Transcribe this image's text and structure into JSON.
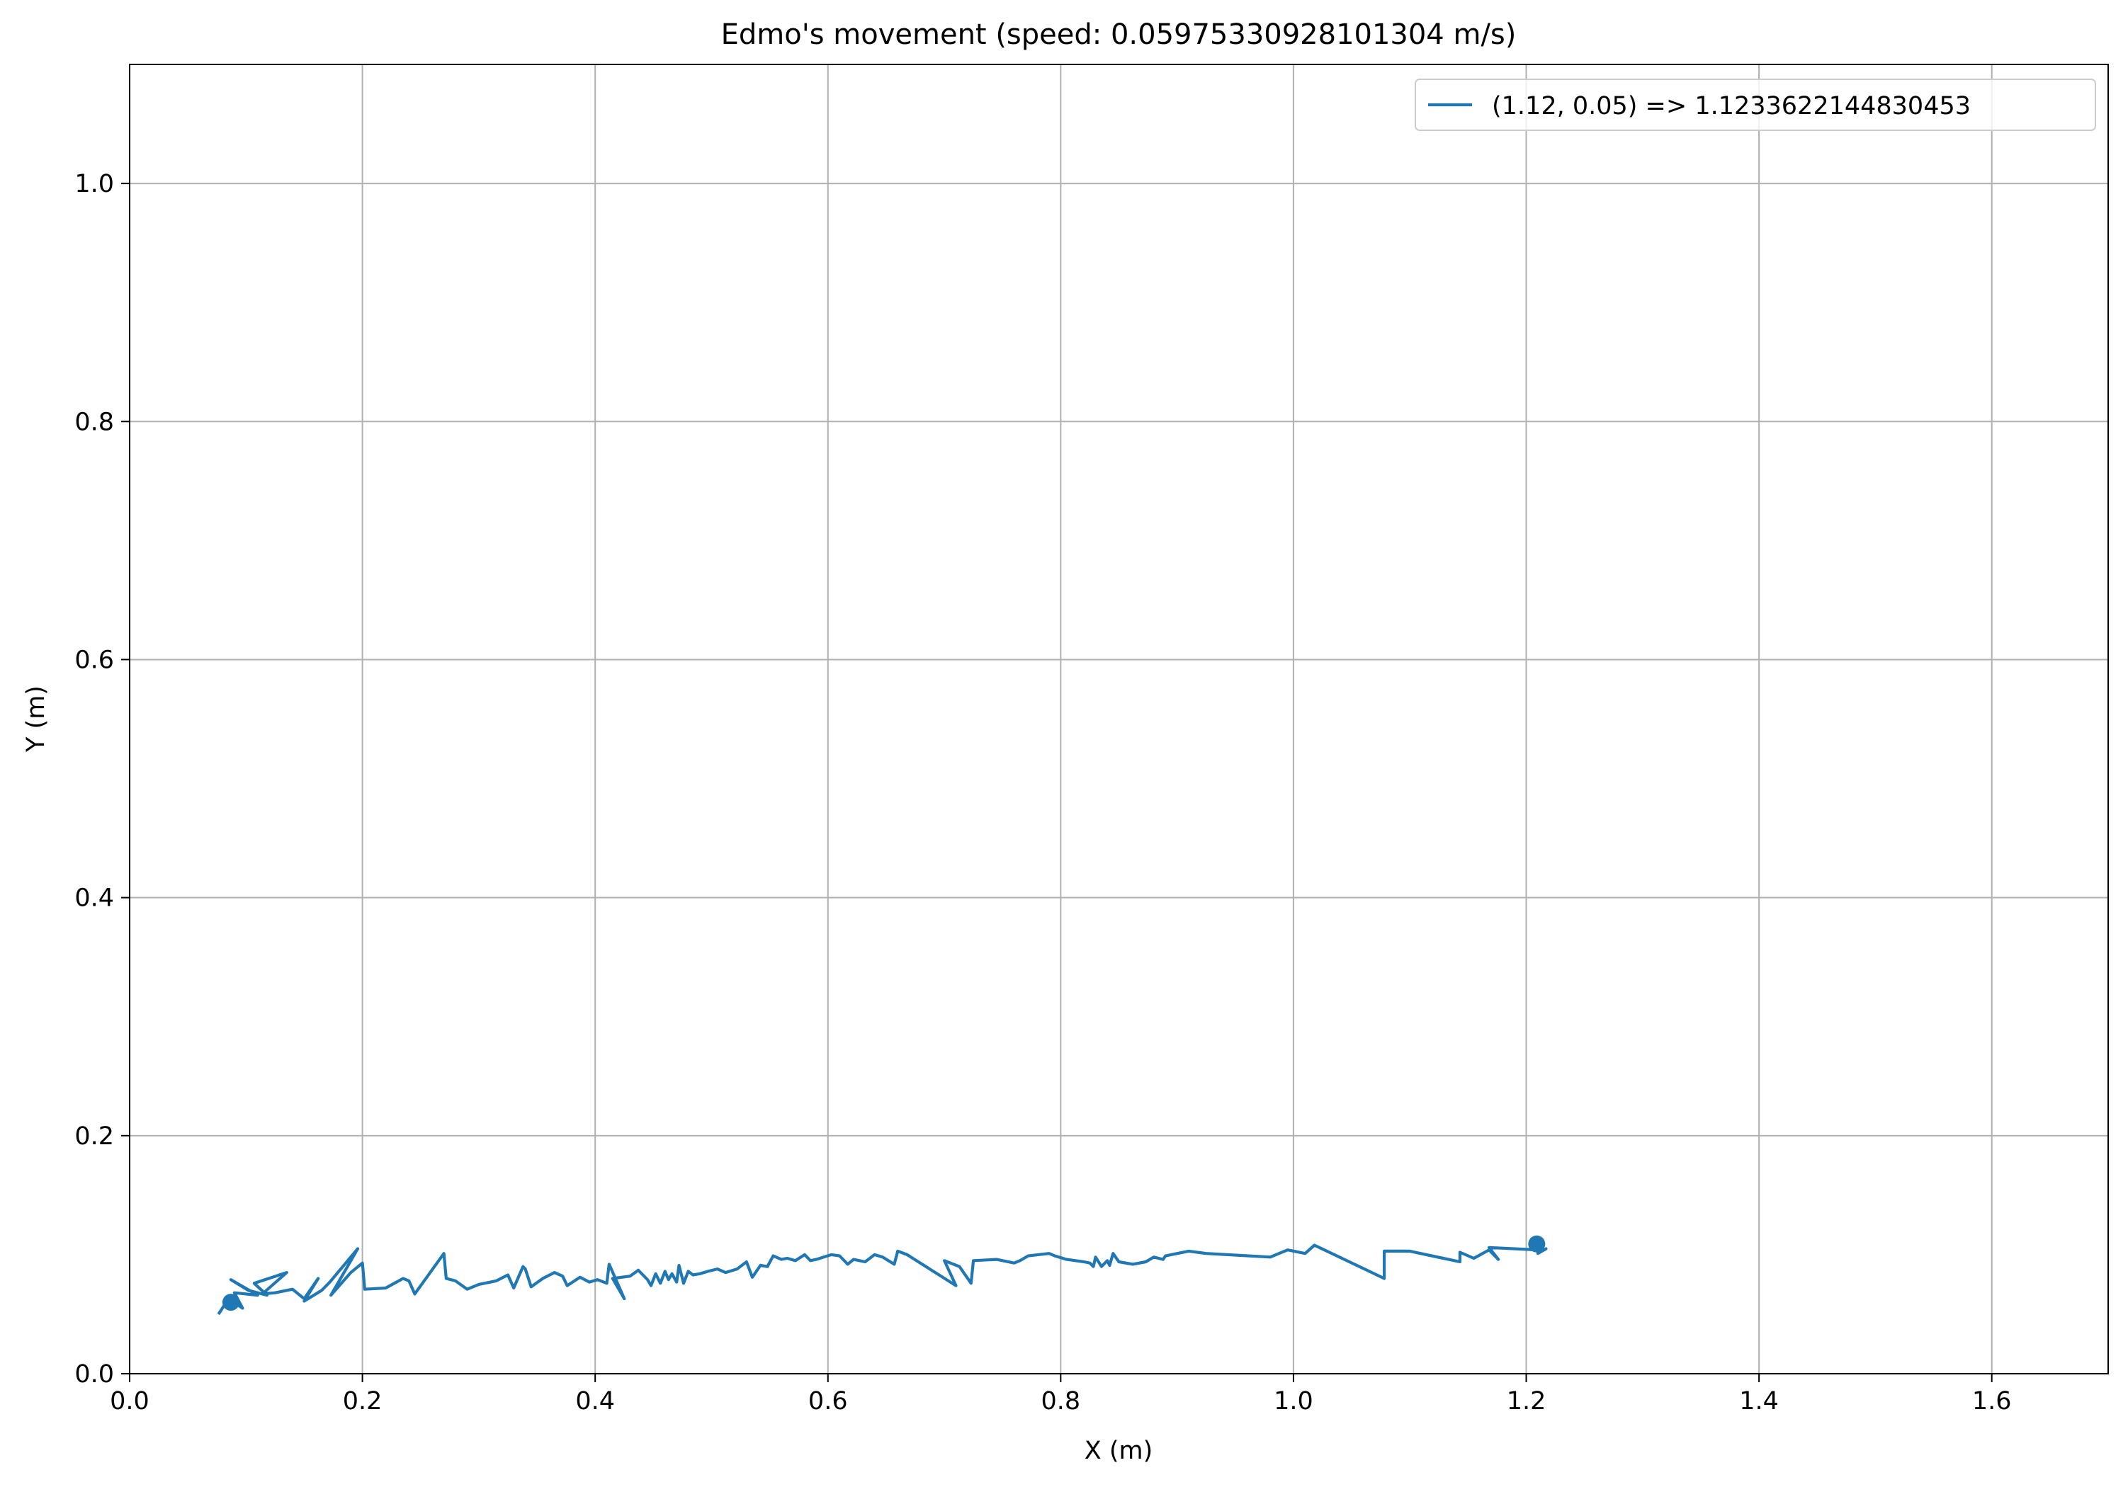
{
  "chart_data": {
    "type": "line",
    "title": "Edmo's movement (speed: 0.05975330928101304 m/s)",
    "xlabel": "X (m)",
    "ylabel": "Y (m)",
    "xlim": [
      0.0,
      1.7
    ],
    "ylim": [
      0.0,
      1.1
    ],
    "x_ticks": [
      "0.0",
      "0.2",
      "0.4",
      "0.6",
      "0.8",
      "1.0",
      "1.2",
      "1.4",
      "1.6"
    ],
    "y_ticks": [
      "0.0",
      "0.2",
      "0.4",
      "0.6",
      "0.8",
      "1.0"
    ],
    "grid": true,
    "legend_position": "upper-right",
    "color": "#1f77b4",
    "series": [
      {
        "name": "(1.12, 0.05) => 1.1233622144830453",
        "x": [
          0.077,
          0.085,
          0.097,
          0.09,
          0.11,
          0.087,
          0.102,
          0.118,
          0.107,
          0.135,
          0.114,
          0.125,
          0.14,
          0.15,
          0.162,
          0.15,
          0.165,
          0.172,
          0.196,
          0.173,
          0.19,
          0.2,
          0.202,
          0.22,
          0.235,
          0.24,
          0.245,
          0.27,
          0.272,
          0.28,
          0.29,
          0.3,
          0.315,
          0.325,
          0.33,
          0.338,
          0.34,
          0.345,
          0.355,
          0.365,
          0.372,
          0.376,
          0.387,
          0.395,
          0.402,
          0.41,
          0.412,
          0.425,
          0.415,
          0.43,
          0.437,
          0.445,
          0.448,
          0.452,
          0.456,
          0.46,
          0.463,
          0.466,
          0.47,
          0.472,
          0.476,
          0.48,
          0.484,
          0.49,
          0.497,
          0.505,
          0.512,
          0.522,
          0.53,
          0.535,
          0.542,
          0.548,
          0.553,
          0.56,
          0.565,
          0.572,
          0.58,
          0.585,
          0.59,
          0.603,
          0.61,
          0.617,
          0.622,
          0.632,
          0.64,
          0.647,
          0.657,
          0.66,
          0.668,
          0.71,
          0.7,
          0.713,
          0.723,
          0.725,
          0.745,
          0.76,
          0.765,
          0.772,
          0.79,
          0.795,
          0.805,
          0.82,
          0.825,
          0.828,
          0.83,
          0.835,
          0.84,
          0.842,
          0.845,
          0.85,
          0.862,
          0.873,
          0.88,
          0.888,
          0.89,
          0.91,
          0.925,
          0.98,
          0.995,
          1.01,
          1.018,
          1.078,
          1.078,
          1.1,
          1.143,
          1.143,
          1.155,
          1.168,
          1.176,
          1.168,
          1.21,
          1.21,
          1.217,
          1.213
        ],
        "y": [
          0.051,
          0.063,
          0.055,
          0.068,
          0.066,
          0.079,
          0.07,
          0.066,
          0.076,
          0.085,
          0.067,
          0.068,
          0.071,
          0.063,
          0.08,
          0.061,
          0.07,
          0.077,
          0.105,
          0.066,
          0.085,
          0.093,
          0.071,
          0.072,
          0.08,
          0.078,
          0.067,
          0.101,
          0.08,
          0.078,
          0.071,
          0.075,
          0.078,
          0.083,
          0.072,
          0.09,
          0.088,
          0.073,
          0.08,
          0.085,
          0.082,
          0.074,
          0.081,
          0.077,
          0.079,
          0.076,
          0.092,
          0.063,
          0.08,
          0.082,
          0.087,
          0.079,
          0.074,
          0.084,
          0.076,
          0.086,
          0.079,
          0.084,
          0.077,
          0.091,
          0.076,
          0.086,
          0.083,
          0.084,
          0.086,
          0.088,
          0.085,
          0.088,
          0.094,
          0.081,
          0.091,
          0.09,
          0.099,
          0.096,
          0.097,
          0.095,
          0.1,
          0.095,
          0.096,
          0.1,
          0.099,
          0.092,
          0.096,
          0.094,
          0.1,
          0.098,
          0.092,
          0.103,
          0.1,
          0.074,
          0.095,
          0.09,
          0.076,
          0.095,
          0.096,
          0.093,
          0.095,
          0.099,
          0.101,
          0.099,
          0.096,
          0.094,
          0.093,
          0.09,
          0.098,
          0.09,
          0.095,
          0.091,
          0.101,
          0.094,
          0.092,
          0.094,
          0.098,
          0.096,
          0.099,
          0.103,
          0.101,
          0.098,
          0.104,
          0.101,
          0.108,
          0.08,
          0.103,
          0.103,
          0.094,
          0.102,
          0.097,
          0.104,
          0.096,
          0.106,
          0.104,
          0.101,
          0.105,
          0.103
        ],
        "start_marker": [
          0.087,
          0.06
        ],
        "end_marker": [
          1.209,
          0.109
        ]
      }
    ]
  }
}
